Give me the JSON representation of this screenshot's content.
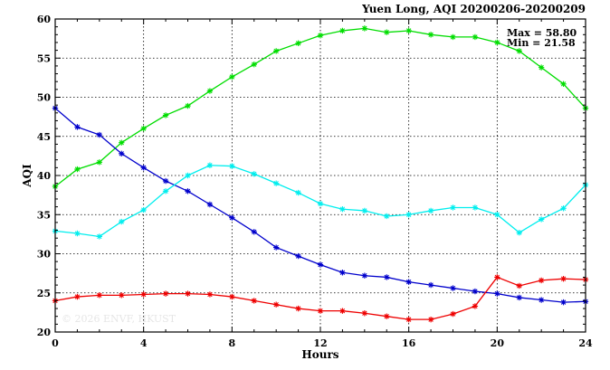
{
  "chart_data": {
    "type": "line",
    "title": "Yuen Long, AQI 20200206-20200209",
    "xlabel": "Hours",
    "ylabel": "AQI",
    "xlim": [
      0,
      24
    ],
    "ylim": [
      20,
      60
    ],
    "xticks": [
      0,
      4,
      8,
      12,
      16,
      20,
      24
    ],
    "yticks": [
      20,
      25,
      30,
      35,
      40,
      45,
      50,
      55,
      60
    ],
    "grid": true,
    "stats": {
      "max_label": "Max = 58.80",
      "min_label": "Min = 21.58"
    },
    "watermark": "© 2026 ENVF, HKUST",
    "x": [
      0,
      1,
      2,
      3,
      4,
      5,
      6,
      7,
      8,
      9,
      10,
      11,
      12,
      13,
      14,
      15,
      16,
      17,
      18,
      19,
      20,
      21,
      22,
      23,
      24
    ],
    "series": [
      {
        "color": "#00dd00",
        "values": [
          38.6,
          40.8,
          41.7,
          44.2,
          46.0,
          47.7,
          48.9,
          50.8,
          52.6,
          54.2,
          55.9,
          56.9,
          57.9,
          58.5,
          58.8,
          58.3,
          58.5,
          58.0,
          57.7,
          57.7,
          57.0,
          55.9,
          53.8,
          51.7,
          48.6
        ]
      },
      {
        "color": "#0000cc",
        "values": [
          48.6,
          46.2,
          45.2,
          42.8,
          41.0,
          39.3,
          38.0,
          36.3,
          34.6,
          32.8,
          30.8,
          29.7,
          28.6,
          27.6,
          27.2,
          27.0,
          26.4,
          26.0,
          25.6,
          25.2,
          24.9,
          24.4,
          24.1,
          23.8,
          23.9
        ]
      },
      {
        "color": "#00eeee",
        "values": [
          32.9,
          32.6,
          32.2,
          34.1,
          35.6,
          38.0,
          40.0,
          41.3,
          41.2,
          40.2,
          39.0,
          37.8,
          36.4,
          35.7,
          35.5,
          34.8,
          35.0,
          35.5,
          35.9,
          35.9,
          35.0,
          32.7,
          34.4,
          35.8,
          38.8
        ]
      },
      {
        "color": "#ee0000",
        "values": [
          24.0,
          24.5,
          24.7,
          24.7,
          24.8,
          24.9,
          24.9,
          24.8,
          24.5,
          24.0,
          23.5,
          23.0,
          22.7,
          22.7,
          22.4,
          22.0,
          21.6,
          21.6,
          22.3,
          23.3,
          27.0,
          25.9,
          26.6,
          26.8,
          26.7
        ]
      }
    ]
  }
}
